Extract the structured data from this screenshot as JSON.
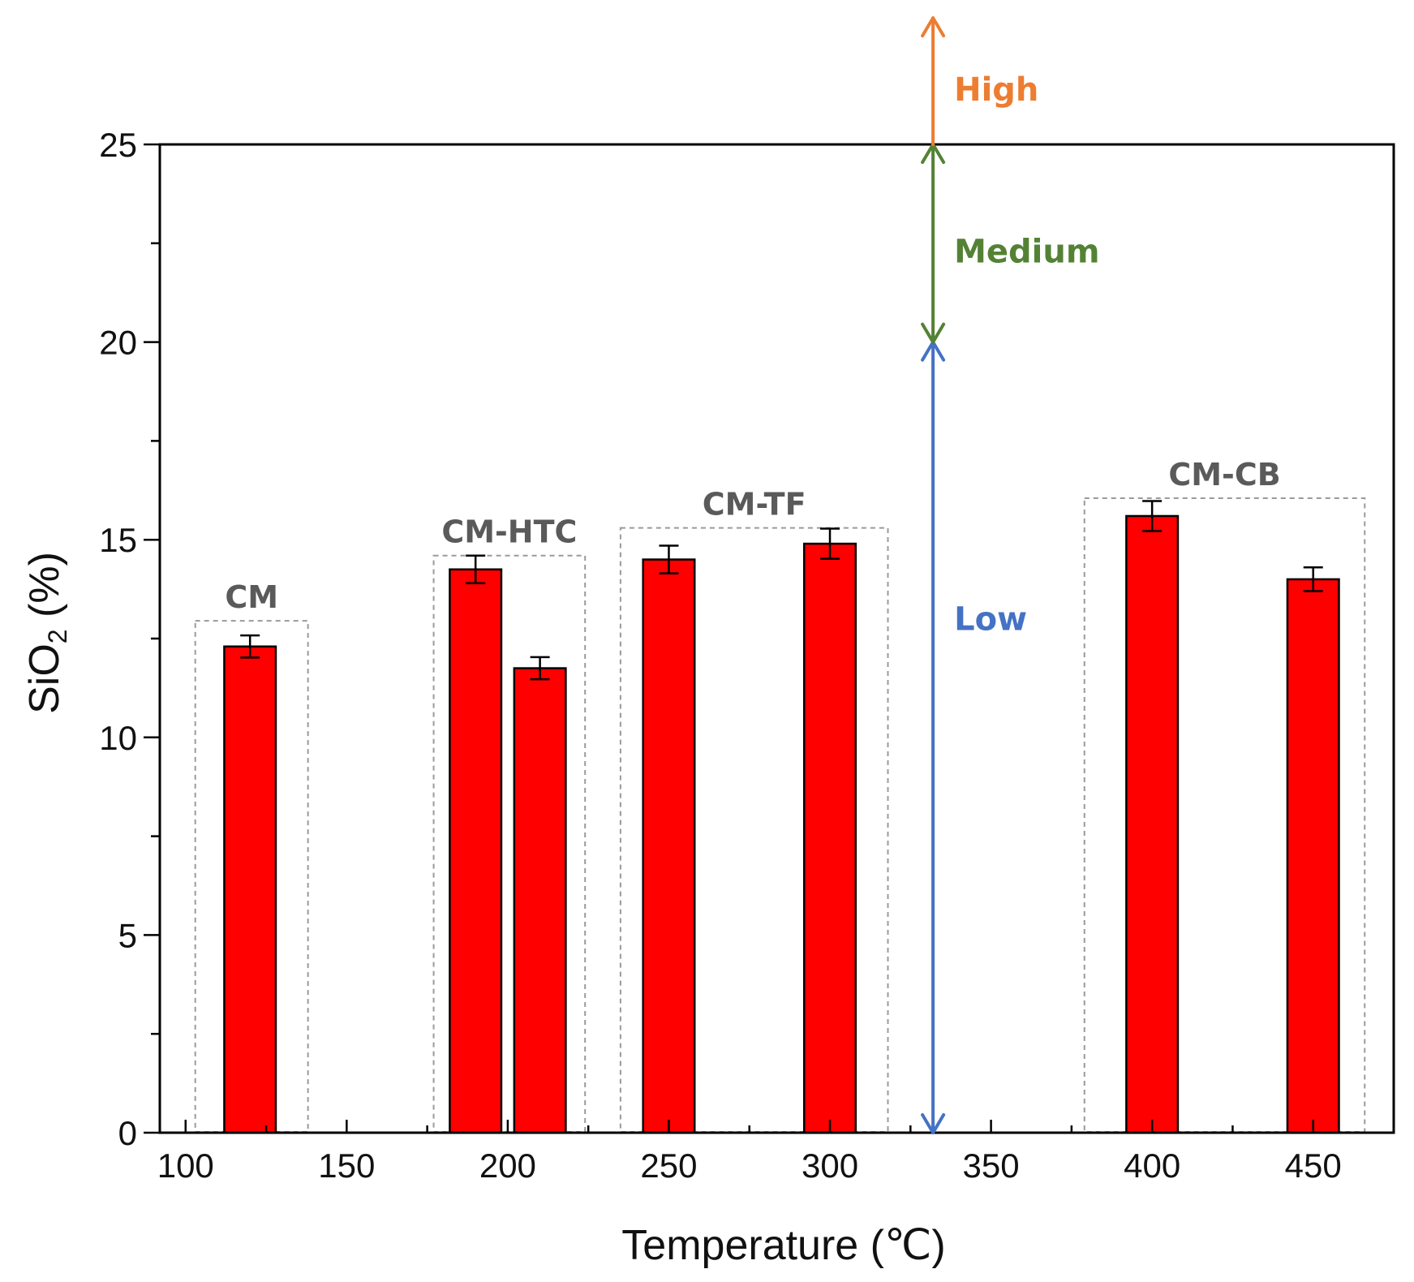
{
  "chart_data": {
    "type": "bar",
    "title": "",
    "xlabel": "Temperature (℃)",
    "ylabel_main": "SiO",
    "ylabel_sub": "2",
    "ylabel_tail": " (%)",
    "xlim": [
      92,
      475
    ],
    "ylim": [
      0,
      25
    ],
    "xticks": [
      100,
      150,
      200,
      250,
      300,
      350,
      400,
      450
    ],
    "yticks": [
      0,
      5,
      10,
      15,
      20,
      25
    ],
    "bar_width": 16,
    "colors": {
      "bar": "#ff0000",
      "low": "#4472c4",
      "medium": "#548235",
      "high": "#ed7d31",
      "group_label": "#5a5a5a"
    },
    "bars": [
      {
        "group": "CM",
        "x": 120,
        "value": 12.3,
        "error": 0.28
      },
      {
        "group": "CM-HTC",
        "x": 190,
        "value": 14.25,
        "error": 0.35
      },
      {
        "group": "CM-HTC",
        "x": 210,
        "value": 11.75,
        "error": 0.28
      },
      {
        "group": "CM-TF",
        "x": 250,
        "value": 14.5,
        "error": 0.35
      },
      {
        "group": "CM-TF",
        "x": 300,
        "value": 14.9,
        "error": 0.38
      },
      {
        "group": "CM-CB",
        "x": 400,
        "value": 15.6,
        "error": 0.38
      },
      {
        "group": "CM-CB",
        "x": 450,
        "value": 14.0,
        "error": 0.3
      }
    ],
    "groups": [
      {
        "label": "CM",
        "x_from": 103,
        "x_to": 138,
        "top": 12.95
      },
      {
        "label": "CM-HTC",
        "x_from": 177,
        "x_to": 224,
        "top": 14.6
      },
      {
        "label": "CM-TF",
        "x_from": 235,
        "x_to": 318,
        "top": 15.3
      },
      {
        "label": "CM-CB",
        "x_from": 379,
        "x_to": 466,
        "top": 16.05
      }
    ],
    "ranges": [
      {
        "label": "Low",
        "from": 0,
        "to": 20,
        "color_key": "low",
        "label_y": 13
      },
      {
        "label": "Medium",
        "from": 20,
        "to": 25,
        "color_key": "medium",
        "label_y": 22.3
      },
      {
        "label": "High",
        "from": 25,
        "to": 28.2,
        "color_key": "high",
        "label_y": 26.4
      }
    ],
    "range_x": 332
  }
}
